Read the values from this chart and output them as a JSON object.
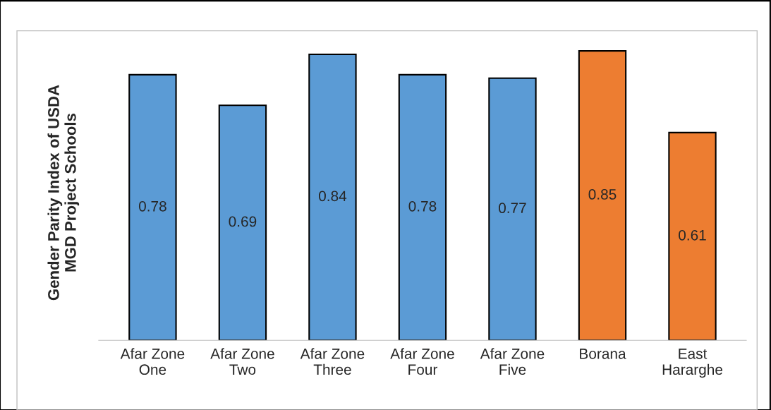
{
  "chart_data": {
    "type": "bar",
    "ylabel": "Gender Parity Index of USDA\nMGD Project Schools",
    "categories": [
      "Afar Zone\nOne",
      "Afar Zone\nTwo",
      "Afar Zone\nThree",
      "Afar Zone\nFour",
      "Afar Zone\nFive",
      "Borana",
      "East\nHararghe"
    ],
    "values": [
      0.78,
      0.69,
      0.84,
      0.78,
      0.77,
      0.85,
      0.61
    ],
    "colors": [
      "#5b9bd5",
      "#5b9bd5",
      "#5b9bd5",
      "#5b9bd5",
      "#5b9bd5",
      "#ed7d31",
      "#ed7d31"
    ],
    "data_labels": true,
    "grid": false,
    "legend": false
  }
}
